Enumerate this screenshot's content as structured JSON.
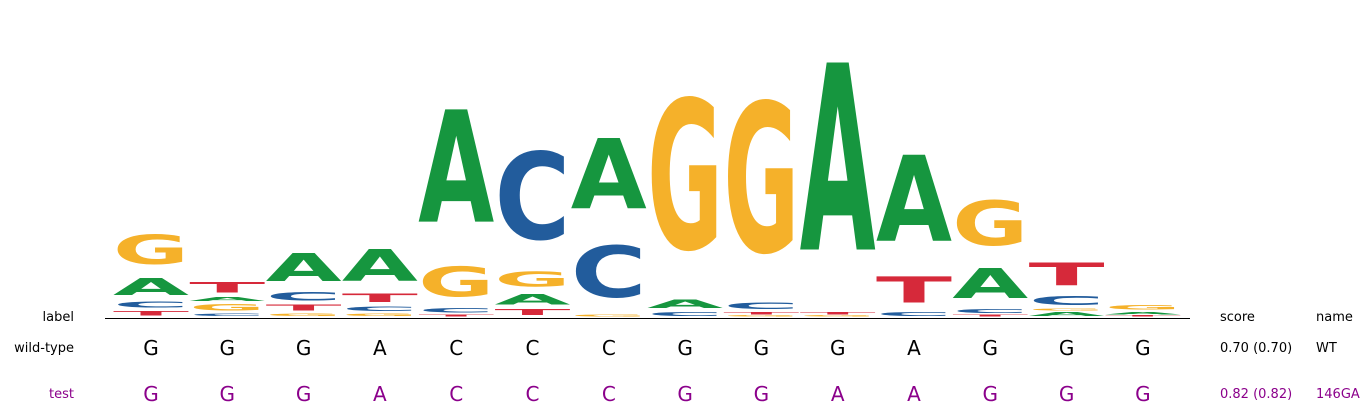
{
  "colors": {
    "A": "#16963f",
    "C": "#225c9c",
    "G": "#f5b12a",
    "T": "#d6293a",
    "test": "#8b008b"
  },
  "header": {
    "label": "label",
    "score": "score",
    "name": "name"
  },
  "rows": [
    {
      "label": "wild-type",
      "seq": [
        "G",
        "G",
        "G",
        "A",
        "C",
        "C",
        "C",
        "G",
        "G",
        "G",
        "A",
        "G",
        "G",
        "G"
      ],
      "score": "0.70 (0.70)",
      "name": "WT"
    },
    {
      "label": "test",
      "seq": [
        "G",
        "G",
        "G",
        "A",
        "C",
        "C",
        "C",
        "G",
        "G",
        "A",
        "A",
        "G",
        "G",
        "G"
      ],
      "score": "0.82 (0.82)",
      "name": "146GA"
    }
  ],
  "logo": {
    "positions": [
      [
        [
          "T",
          0.05
        ],
        [
          "C",
          0.06
        ],
        [
          "A",
          0.18
        ],
        [
          "G",
          0.31
        ]
      ],
      [
        [
          "C",
          0.03
        ],
        [
          "G",
          0.07
        ],
        [
          "A",
          0.04
        ],
        [
          "T",
          0.11
        ]
      ],
      [
        [
          "G",
          0.03
        ],
        [
          "T",
          0.06
        ],
        [
          "C",
          0.09
        ],
        [
          "A",
          0.3
        ]
      ],
      [
        [
          "G",
          0.03
        ],
        [
          "C",
          0.05
        ],
        [
          "T",
          0.09
        ],
        [
          "A",
          0.34
        ]
      ],
      [
        [
          "T",
          0.02
        ],
        [
          "C",
          0.05
        ],
        [
          "G",
          0.32
        ],
        [
          "A",
          1.2
        ]
      ],
      [
        [
          "T",
          0.06
        ],
        [
          "A",
          0.11
        ],
        [
          "G",
          0.16
        ],
        [
          "C",
          0.93
        ]
      ],
      [
        [
          "G",
          0.02
        ],
        [
          "C",
          0.55
        ],
        [
          "A",
          0.75
        ]
      ],
      [
        [
          "C",
          0.04
        ],
        [
          "A",
          0.09
        ],
        [
          "G",
          1.6
        ]
      ],
      [
        [
          "G",
          0.01
        ],
        [
          "T",
          0.03
        ],
        [
          "C",
          0.07
        ],
        [
          "G",
          1.6
        ]
      ],
      [
        [
          "G",
          0.01
        ],
        [
          "T",
          0.03
        ],
        [
          "A",
          2.0
        ]
      ],
      [
        [
          "C",
          0.04
        ],
        [
          "T",
          0.28
        ],
        [
          "A",
          0.92
        ]
      ],
      [
        [
          "T",
          0.02
        ],
        [
          "C",
          0.04
        ],
        [
          "A",
          0.32
        ],
        [
          "G",
          0.48
        ]
      ],
      [
        [
          "A",
          0.04
        ],
        [
          "G",
          0.02
        ],
        [
          "C",
          0.1
        ],
        [
          "T",
          0.24
        ]
      ],
      [
        [
          "T",
          0.01
        ],
        [
          "A",
          0.03
        ],
        [
          "G",
          0.05
        ]
      ]
    ]
  }
}
